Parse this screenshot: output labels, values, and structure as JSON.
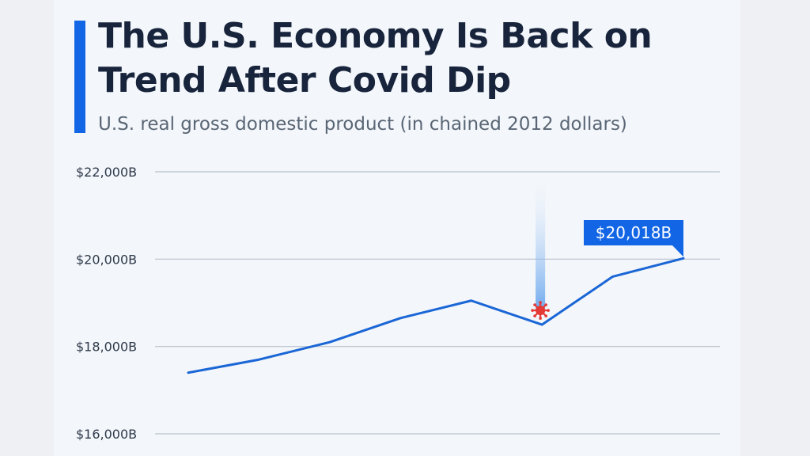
{
  "header": {
    "title": "The U.S. Economy Is Back on Trend After Covid Dip",
    "subtitle": "U.S. real gross domestic product (in chained 2012 dollars)"
  },
  "colors": {
    "accent": "#1266e6",
    "line": "#1a66d6",
    "grid": "#b8c2cc",
    "covid_marker": "#e53935",
    "title": "#17243b"
  },
  "chart_data": {
    "type": "line",
    "title": "The U.S. Economy Is Back on Trend After Covid Dip",
    "subtitle": "U.S. real gross domestic product (in chained 2012 dollars)",
    "xlabel": "",
    "ylabel": "",
    "ylim": [
      16000,
      22000
    ],
    "yticks": [
      16000,
      18000,
      20000,
      22000
    ],
    "ytick_labels": [
      "$16,000B",
      "$18,000B",
      "$20,000B",
      "$22,000B"
    ],
    "grid": true,
    "series": [
      {
        "values": [
          17400,
          17700,
          18100,
          18650,
          19050,
          18500,
          19600,
          20018
        ]
      }
    ],
    "annotations": [
      {
        "type": "callout",
        "text": "$20,018B",
        "point_index": 7
      },
      {
        "type": "marker",
        "icon": "covid-virus-icon",
        "point_index": 5
      }
    ]
  }
}
